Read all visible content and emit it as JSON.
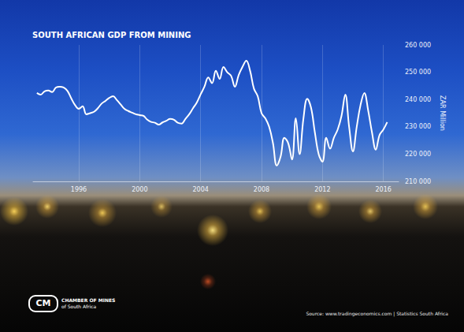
{
  "chart_data": {
    "type": "line",
    "title": "SOUTH AFRICAN GDP FROM MINING",
    "y_label": "ZAR Million",
    "annotations": [
      "CM",
      "CHAMBER OF MINES",
      "of South Africa",
      "Source: www.tradingeconomics.com | Statistics South Africa"
    ],
    "x": [
      1993.25,
      1993.5,
      1993.75,
      1994.0,
      1994.25,
      1994.5,
      1994.75,
      1995.0,
      1995.25,
      1995.5,
      1995.75,
      1996.0,
      1996.25,
      1996.5,
      1996.75,
      1997.0,
      1997.25,
      1997.5,
      1997.75,
      1998.0,
      1998.25,
      1998.5,
      1998.75,
      1999.0,
      1999.25,
      1999.5,
      1999.75,
      2000.0,
      2000.25,
      2000.5,
      2000.75,
      2001.0,
      2001.25,
      2001.5,
      2001.75,
      2002.0,
      2002.25,
      2002.5,
      2002.75,
      2003.0,
      2003.25,
      2003.5,
      2003.75,
      2004.0,
      2004.25,
      2004.5,
      2004.75,
      2005.0,
      2005.25,
      2005.5,
      2005.75,
      2006.0,
      2006.25,
      2006.5,
      2006.75,
      2007.0,
      2007.25,
      2007.5,
      2007.75,
      2008.0,
      2008.25,
      2008.5,
      2008.75,
      2009.0,
      2009.25,
      2009.5,
      2009.75,
      2010.0,
      2010.25,
      2010.5,
      2010.75,
      2011.0,
      2011.25,
      2011.5,
      2011.75,
      2012.0,
      2012.25,
      2012.5,
      2012.75,
      2013.0,
      2013.25,
      2013.5,
      2013.75,
      2014.0,
      2014.25,
      2014.5,
      2014.75,
      2015.0,
      2015.25,
      2015.5,
      2015.75,
      2016.0,
      2016.25
    ],
    "series": [
      {
        "name": "GDP from Mining",
        "color": "#ffffff",
        "line_style": "solid",
        "values": [
          242400,
          241800,
          243000,
          243300,
          242700,
          244400,
          244700,
          244400,
          243200,
          240500,
          238000,
          236600,
          237500,
          234600,
          235000,
          235500,
          236800,
          238500,
          239500,
          240600,
          241200,
          239800,
          238200,
          236600,
          235800,
          235200,
          234600,
          234300,
          234000,
          232600,
          231800,
          231500,
          230800,
          231600,
          232200,
          232900,
          232600,
          231500,
          231200,
          232900,
          234600,
          236800,
          238900,
          241900,
          244700,
          248100,
          246000,
          250500,
          247600,
          251900,
          250000,
          248700,
          244700,
          249000,
          252000,
          254200,
          250500,
          244000,
          241200,
          235000,
          233100,
          230000,
          224000,
          215800,
          219000,
          226000,
          224000,
          218000,
          233100,
          220000,
          233000,
          240300,
          237000,
          228000,
          220000,
          217200,
          226000,
          222000,
          226000,
          229000,
          234000,
          241800,
          230000,
          221000,
          230000,
          238000,
          242400,
          236000,
          228000,
          221600,
          227000,
          229000,
          231700
        ]
      }
    ],
    "xlim": [
      1993,
      2017
    ],
    "xticks": [
      1996,
      2000,
      2004,
      2008,
      2012,
      2016
    ],
    "ylim": [
      210000,
      260000
    ],
    "yticks": [
      {
        "value": 210000,
        "label": "210 000"
      },
      {
        "value": 220000,
        "label": "220 000"
      },
      {
        "value": 230000,
        "label": "230 000"
      },
      {
        "value": 240000,
        "label": "240 000"
      },
      {
        "value": 250000,
        "label": "250 000"
      },
      {
        "value": 260000,
        "label": "260 000"
      }
    ],
    "grid": true
  }
}
